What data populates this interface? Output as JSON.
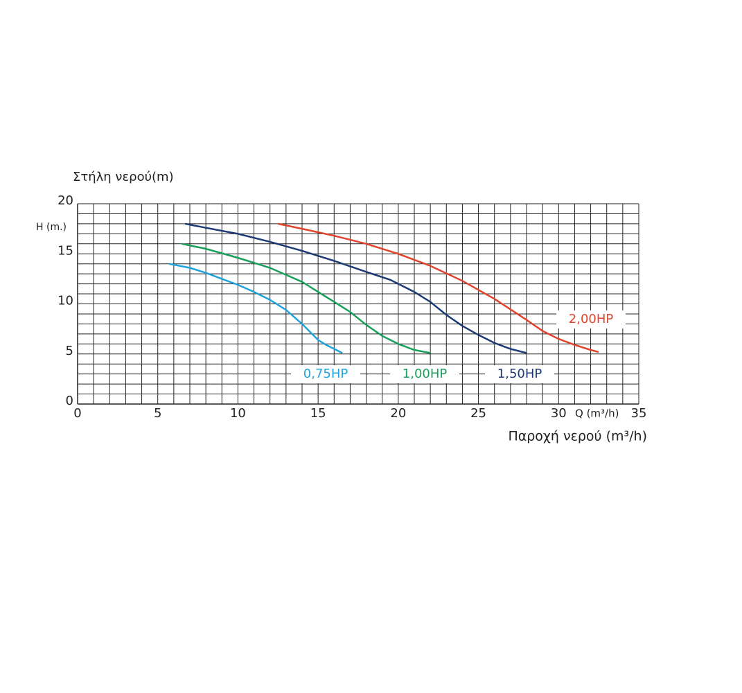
{
  "chart_data": {
    "type": "line",
    "y_title": "Στήλη νερού(m)",
    "y_unit": "H (m.)",
    "x_unit": "Q (m³/h)",
    "x_title": "Παροχή νερού (m³/h)",
    "xlim": [
      0,
      35
    ],
    "ylim": [
      0,
      20
    ],
    "xticks": [
      0,
      5,
      10,
      15,
      20,
      25,
      30,
      35
    ],
    "yticks": [
      0,
      5,
      10,
      15,
      20
    ],
    "grid": true,
    "series": [
      {
        "name": "0,75HP",
        "color": "#1fa3dc",
        "x": [
          5.7,
          7,
          8,
          9,
          10,
          11,
          12,
          13,
          14,
          14.5,
          15,
          15.5,
          16,
          16.5
        ],
        "values": [
          14,
          13.6,
          13.1,
          12.5,
          11.9,
          11.2,
          10.4,
          9.4,
          8,
          7.2,
          6.4,
          5.9,
          5.5,
          5.1
        ]
      },
      {
        "name": "1,00HP",
        "color": "#189f5a",
        "x": [
          6.5,
          8,
          10,
          12,
          14,
          15,
          16,
          17,
          18,
          19,
          20,
          21,
          22
        ],
        "values": [
          16,
          15.5,
          14.6,
          13.6,
          12.2,
          11.2,
          10.2,
          9.2,
          7.9,
          6.8,
          6,
          5.4,
          5.1
        ]
      },
      {
        "name": "1,50HP",
        "color": "#1c3a74",
        "x": [
          6.7,
          8,
          10,
          12,
          14,
          16,
          18,
          19.5,
          21,
          22,
          23,
          24,
          25,
          26,
          27,
          28
        ],
        "values": [
          18,
          17.6,
          17,
          16.2,
          15.3,
          14.3,
          13.2,
          12.4,
          11.2,
          10.2,
          8.9,
          7.8,
          6.9,
          6.1,
          5.5,
          5.1
        ]
      },
      {
        "name": "2,00HP",
        "color": "#e0432b",
        "x": [
          12.5,
          14,
          16,
          18,
          20,
          22,
          24,
          26,
          28,
          29,
          30,
          31,
          32,
          32.5
        ],
        "values": [
          18,
          17.5,
          16.8,
          16,
          15,
          13.8,
          12.3,
          10.5,
          8.4,
          7.3,
          6.5,
          5.9,
          5.4,
          5.2
        ]
      }
    ]
  }
}
